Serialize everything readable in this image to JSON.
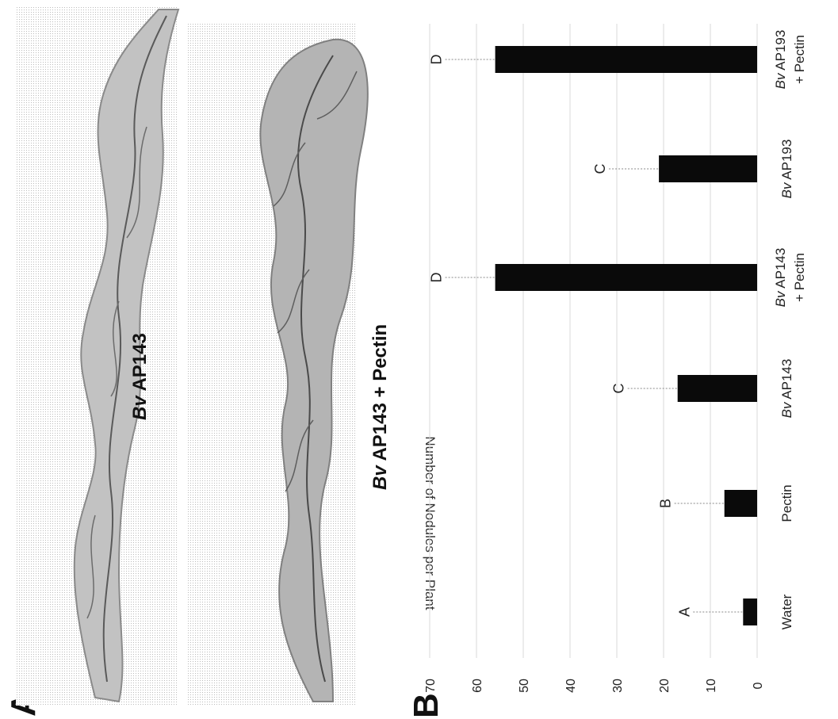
{
  "panel_a": {
    "letter": "A",
    "photos": [
      {
        "caption_prefix": "Bv",
        "caption_rest": " AP143"
      },
      {
        "caption_prefix": "Bv",
        "caption_rest": " AP143 + Pectin"
      }
    ]
  },
  "panel_b": {
    "letter": "B"
  },
  "chart_data": {
    "type": "bar",
    "title": "",
    "xlabel": "",
    "ylabel": "Number of Nodules per Plant",
    "ylim": [
      0,
      70
    ],
    "yticks": [
      0,
      10,
      20,
      30,
      40,
      50,
      60,
      70
    ],
    "grid": true,
    "orientation": "rotated 90° counter-clockwise (values increase to the left)",
    "categories": [
      {
        "prefix": "",
        "line1": "Water",
        "line2": ""
      },
      {
        "prefix": "",
        "line1": "Pectin",
        "line2": ""
      },
      {
        "prefix": "Bv",
        "line1": " AP143",
        "line2": ""
      },
      {
        "prefix": "Bv",
        "line1": " AP143",
        "line2": "+ Pectin"
      },
      {
        "prefix": "Bv",
        "line1": " AP193",
        "line2": ""
      },
      {
        "prefix": "Bv",
        "line1": " AP193",
        "line2": "+ Pectin"
      }
    ],
    "values": [
      3,
      7,
      17,
      56,
      21,
      56
    ],
    "significance": [
      "A",
      "B",
      "C",
      "D",
      "C",
      "D"
    ],
    "bar_color": "#0a0a0a"
  }
}
